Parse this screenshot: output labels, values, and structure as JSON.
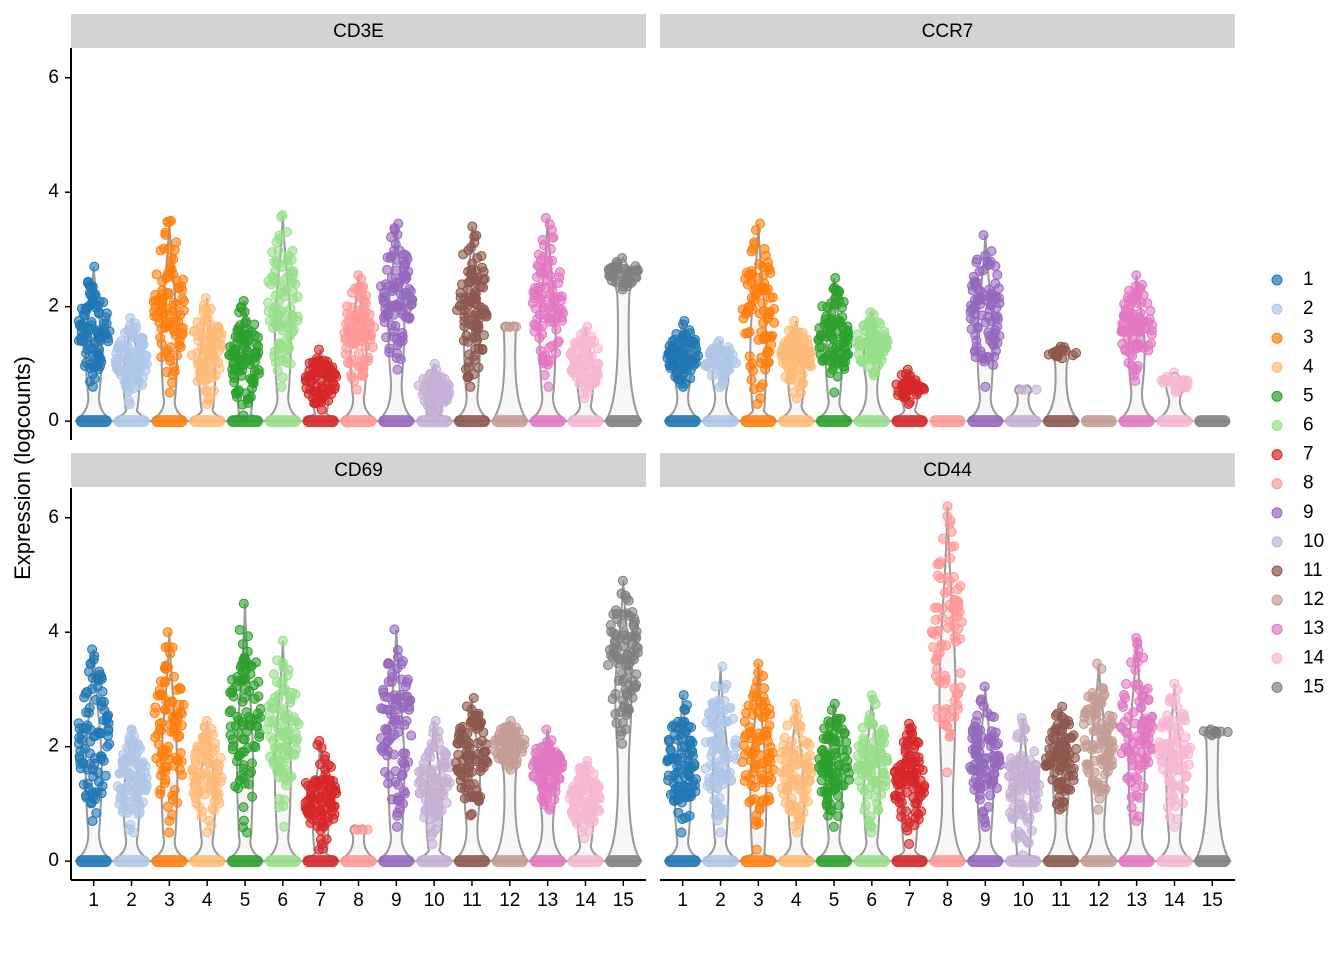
{
  "chart_data": {
    "type": "violin",
    "y_label": "Expression (logcounts)",
    "categories": [
      "1",
      "2",
      "3",
      "4",
      "5",
      "6",
      "7",
      "8",
      "9",
      "10",
      "11",
      "12",
      "13",
      "14",
      "15"
    ],
    "colors": [
      "#1f77b4",
      "#aec7e8",
      "#ff7f0e",
      "#ffbb78",
      "#2ca02c",
      "#98df8a",
      "#d62728",
      "#ff9896",
      "#9467bd",
      "#c5b0d5",
      "#8c564b",
      "#c49c94",
      "#e377c2",
      "#f7b6d2",
      "#7f7f7f"
    ],
    "ylim": [
      -0.33,
      6.52
    ],
    "yticks": [
      0,
      2,
      4,
      6
    ],
    "panels": [
      {
        "title": "CD3E",
        "max": [
          2.7,
          1.8,
          3.5,
          2.15,
          2.1,
          3.6,
          1.25,
          2.55,
          3.45,
          1.0,
          3.4,
          1.65,
          3.55,
          1.65,
          2.85
        ],
        "low": [
          0.6,
          0.3,
          0.5,
          0.3,
          0.1,
          0.6,
          0.2,
          0.55,
          0.9,
          0.1,
          0.6,
          1.65,
          0.6,
          0.4,
          2.3
        ]
      },
      {
        "title": "CCR7",
        "max": [
          1.75,
          1.4,
          3.45,
          1.75,
          2.5,
          1.9,
          0.9,
          null,
          3.25,
          0.55,
          1.3,
          null,
          2.55,
          0.85,
          null
        ],
        "low": [
          0.6,
          0.6,
          0.3,
          0.4,
          0.5,
          0.8,
          0.3,
          null,
          0.6,
          0.55,
          1.1,
          null,
          0.7,
          0.5,
          null
        ]
      },
      {
        "title": "CD69",
        "max": [
          3.7,
          2.3,
          4.0,
          2.45,
          4.5,
          3.85,
          2.1,
          0.55,
          4.05,
          2.45,
          2.85,
          2.45,
          2.3,
          1.75,
          4.9
        ],
        "low": [
          0.7,
          0.5,
          0.5,
          0.5,
          0.5,
          0.6,
          0.2,
          0.55,
          0.6,
          0.3,
          0.8,
          1.6,
          0.9,
          0.4,
          2.05
        ]
      },
      {
        "title": "CD44",
        "max": [
          2.9,
          3.4,
          3.45,
          2.75,
          2.75,
          2.9,
          2.4,
          6.2,
          3.05,
          2.5,
          2.7,
          3.45,
          3.9,
          3.1,
          2.3
        ],
        "low": [
          0.5,
          0.5,
          0.2,
          0.5,
          0.6,
          0.5,
          0.3,
          1.55,
          0.6,
          0.1,
          0.9,
          0.9,
          0.7,
          0.6,
          2.2
        ]
      }
    ]
  }
}
